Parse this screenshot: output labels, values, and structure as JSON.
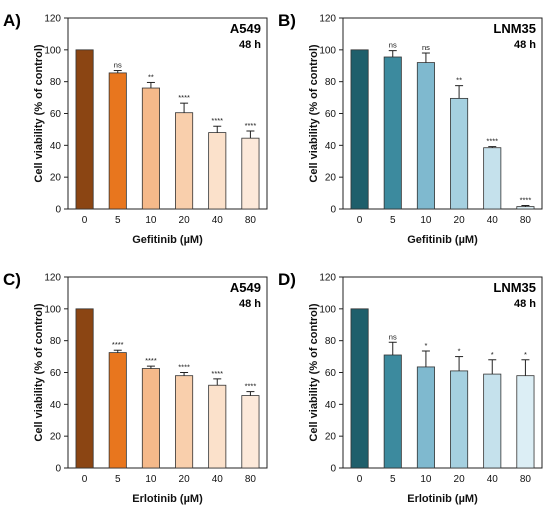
{
  "chart_data": [
    {
      "type": "bar",
      "panel_label": "A)",
      "cell_line": "A549",
      "time": "48 h",
      "xlabel": "Gefitinib (µM)",
      "ylabel": "Cell viability (% of control)",
      "categories": [
        "0",
        "5",
        "10",
        "20",
        "40",
        "80"
      ],
      "values": [
        100,
        85.5,
        76,
        60.5,
        48,
        44.5
      ],
      "errors": [
        0,
        1.5,
        3.5,
        6,
        4,
        4.5
      ],
      "significance": [
        "",
        "ns",
        "**",
        "****",
        "****",
        "****"
      ],
      "colors": [
        "#8B4513",
        "#E8761E",
        "#F5B98A",
        "#F9CFAC",
        "#FBE1CB",
        "#FCE9DA"
      ],
      "ylim": [
        0,
        120
      ],
      "yticks": [
        0,
        20,
        40,
        60,
        80,
        100,
        120
      ],
      "grid": false
    },
    {
      "type": "bar",
      "panel_label": "B)",
      "cell_line": "LNM35",
      "time": "48 h",
      "xlabel": "Gefitinib (µM)",
      "ylabel": "Cell viability (% of control)",
      "categories": [
        "0",
        "5",
        "10",
        "20",
        "40",
        "80"
      ],
      "values": [
        100,
        95.5,
        92,
        69.5,
        38.5,
        1.5
      ],
      "errors": [
        0,
        4,
        6,
        8,
        0.7,
        0.7
      ],
      "significance": [
        "",
        "ns",
        "ns",
        "**",
        "****",
        "****"
      ],
      "colors": [
        "#1F5F6B",
        "#3C8A9E",
        "#7FB9CF",
        "#A5D0E0",
        "#C5E1EC",
        "#DCEEF5"
      ],
      "ylim": [
        0,
        120
      ],
      "yticks": [
        0,
        20,
        40,
        60,
        80,
        100,
        120
      ],
      "grid": false
    },
    {
      "type": "bar",
      "panel_label": "C)",
      "cell_line": "A549",
      "time": "48 h",
      "xlabel": "Erlotinib (µM)",
      "ylabel": "Cell viability (% of control)",
      "categories": [
        "0",
        "5",
        "10",
        "20",
        "40",
        "80"
      ],
      "values": [
        100,
        72.5,
        62.5,
        58,
        52,
        45.5
      ],
      "errors": [
        0,
        1.5,
        1.5,
        2,
        4,
        2.5
      ],
      "significance": [
        "",
        "****",
        "****",
        "****",
        "****",
        "****"
      ],
      "colors": [
        "#8B4513",
        "#E8761E",
        "#F5B98A",
        "#F9CFAC",
        "#FBE1CB",
        "#FCE9DA"
      ],
      "ylim": [
        0,
        120
      ],
      "yticks": [
        0,
        20,
        40,
        60,
        80,
        100,
        120
      ],
      "grid": false
    },
    {
      "type": "bar",
      "panel_label": "D)",
      "cell_line": "LNM35",
      "time": "48 h",
      "xlabel": "Erlotinib (µM)",
      "ylabel": "Cell viability (% of control)",
      "categories": [
        "0",
        "5",
        "10",
        "20",
        "40",
        "80"
      ],
      "values": [
        100,
        71,
        63.5,
        61,
        59,
        58
      ],
      "errors": [
        0,
        8,
        10,
        9,
        9,
        10
      ],
      "significance": [
        "",
        "ns",
        "*",
        "*",
        "*",
        "*"
      ],
      "colors": [
        "#1F5F6B",
        "#3C8A9E",
        "#7FB9CF",
        "#A5D0E0",
        "#C5E1EC",
        "#DCEEF5"
      ],
      "ylim": [
        0,
        120
      ],
      "yticks": [
        0,
        20,
        40,
        60,
        80,
        100,
        120
      ],
      "grid": false
    }
  ]
}
